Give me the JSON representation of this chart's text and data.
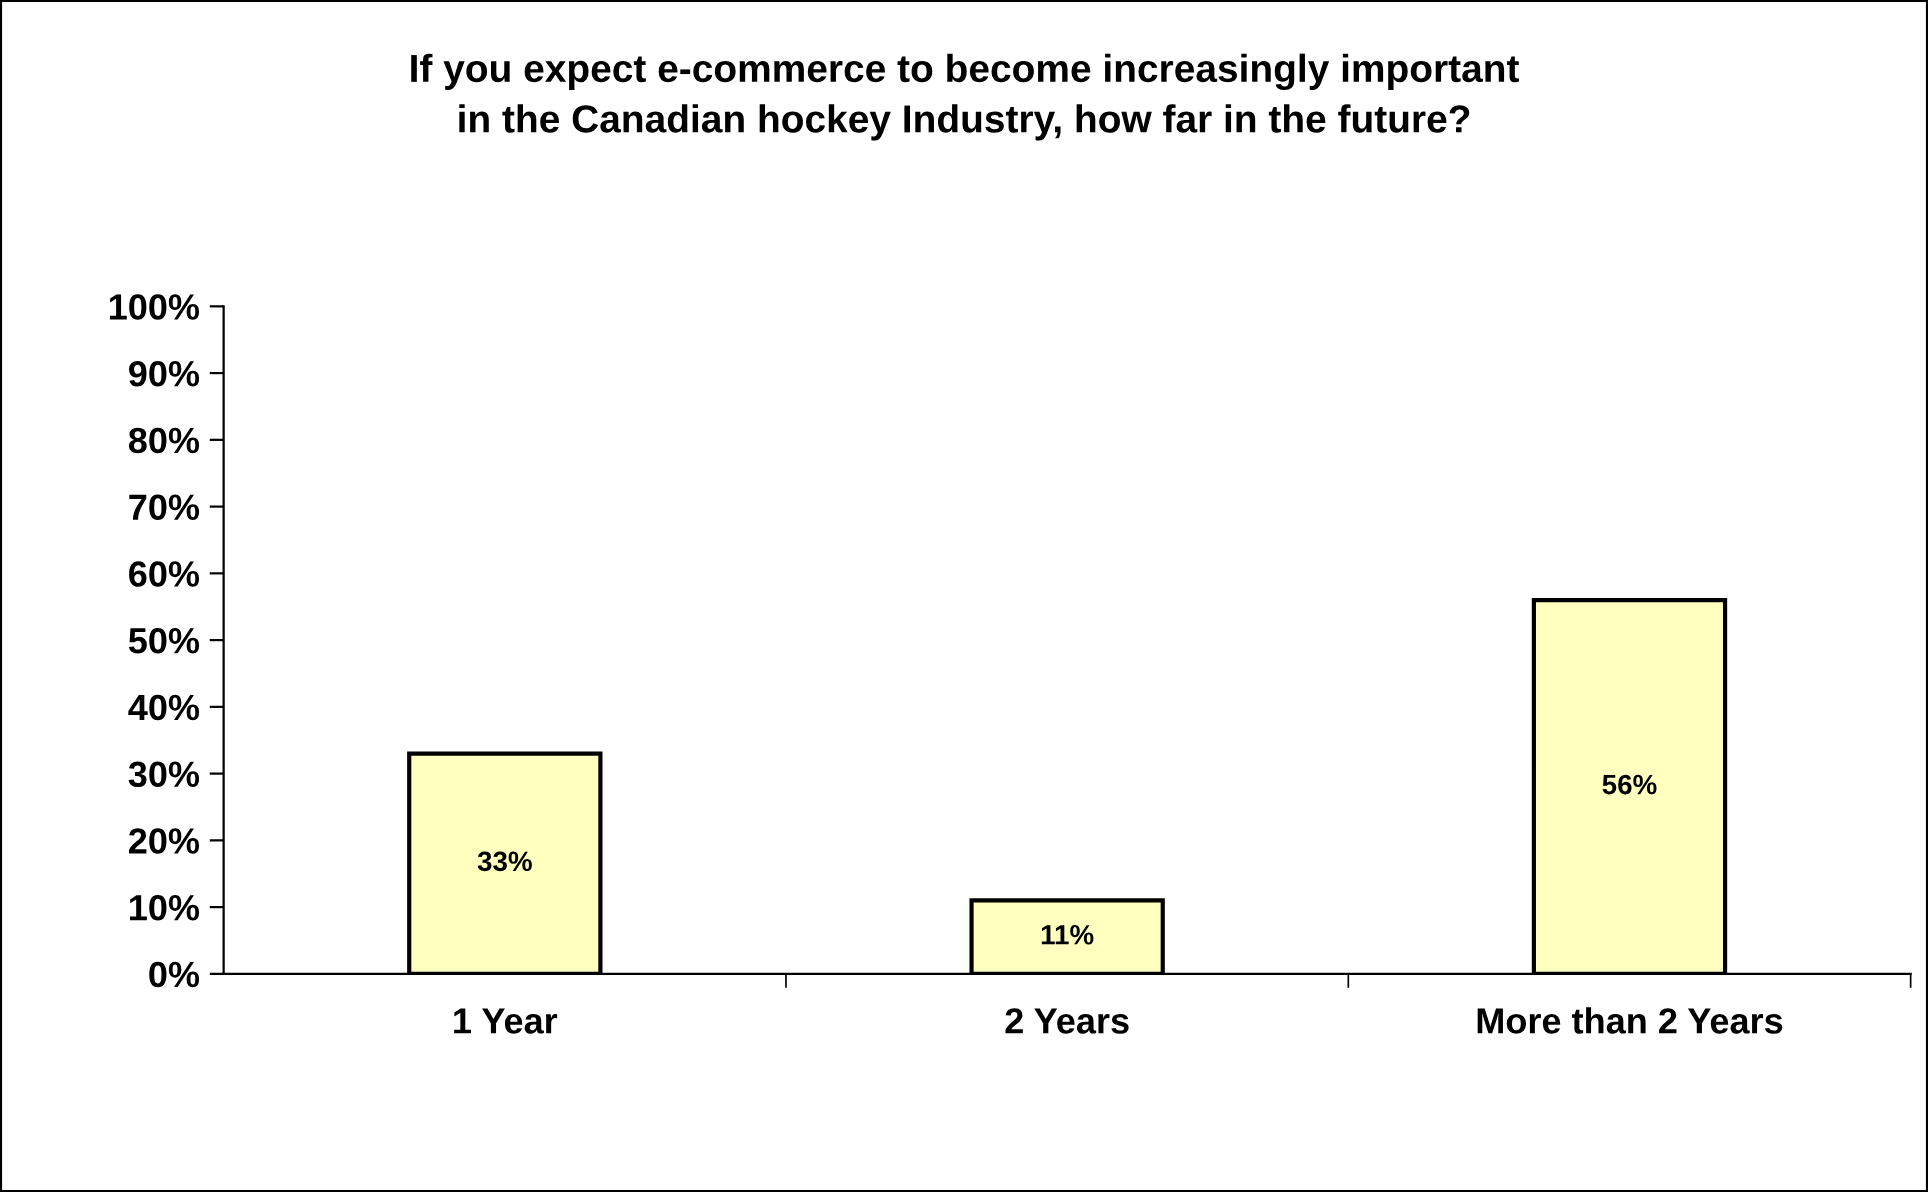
{
  "chart_data": {
    "type": "bar",
    "title": "If you expect e-commerce to become increasingly important\nin the Canadian hockey Industry, how far in the future?",
    "categories": [
      "1 Year",
      "2 Years",
      "More than 2 Years"
    ],
    "values": [
      33,
      11,
      56
    ],
    "value_labels": [
      "33%",
      "11%",
      "56%"
    ],
    "color": "#ffffc0",
    "ylim": [
      0,
      100
    ],
    "yticks": [
      {
        "value": 0,
        "label": "0%"
      },
      {
        "value": 10,
        "label": "10%"
      },
      {
        "value": 20,
        "label": "20%"
      },
      {
        "value": 30,
        "label": "30%"
      },
      {
        "value": 40,
        "label": "40%"
      },
      {
        "value": 50,
        "label": "50%"
      },
      {
        "value": 60,
        "label": "60%"
      },
      {
        "value": 70,
        "label": "70%"
      },
      {
        "value": 80,
        "label": "80%"
      },
      {
        "value": 90,
        "label": "90%"
      },
      {
        "value": 100,
        "label": "100%"
      }
    ],
    "grid": false,
    "legend": false
  }
}
